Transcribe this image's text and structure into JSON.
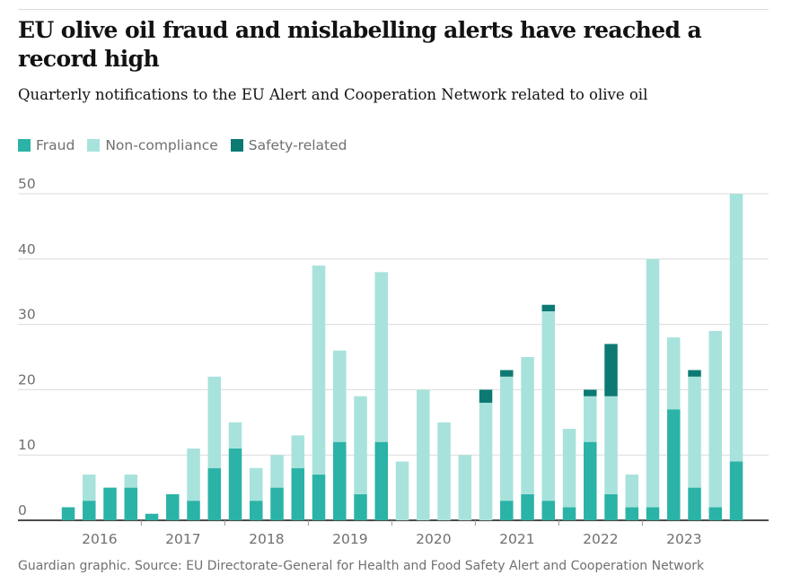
{
  "chart_data": {
    "type": "stacked-bar",
    "title": "EU olive oil fraud and mislabelling alerts have reached a record high",
    "subtitle": "Quarterly notifications to the EU Alert and Cooperation Network related to olive oil",
    "source": "Guardian graphic. Source: EU Directorate-General for Health and Food Safety Alert and Cooperation Network",
    "categories": [
      "2016",
      null,
      null,
      null,
      "2017",
      null,
      null,
      null,
      "2018",
      null,
      null,
      null,
      "2019",
      null,
      null,
      null,
      "2020",
      null,
      null,
      null,
      "2021",
      null,
      null,
      null,
      "2022",
      null,
      null,
      null,
      "2023",
      null,
      null,
      null,
      null
    ],
    "series": [
      {
        "name": "Fraud",
        "color": "#2ab3a6",
        "values": [
          2,
          3,
          5,
          5,
          1,
          4,
          3,
          8,
          11,
          3,
          5,
          8,
          7,
          12,
          4,
          12,
          0,
          0,
          0,
          0,
          0,
          3,
          4,
          3,
          2,
          12,
          4,
          2,
          2,
          17,
          5,
          2,
          9
        ]
      },
      {
        "name": "Non-compliance",
        "color": "#a8e2dc",
        "values": [
          0,
          4,
          0,
          2,
          0,
          0,
          8,
          14,
          4,
          5,
          5,
          5,
          32,
          14,
          15,
          26,
          9,
          20,
          15,
          10,
          18,
          19,
          21,
          29,
          12,
          7,
          15,
          5,
          38,
          11,
          17,
          27,
          41
        ]
      },
      {
        "name": "Safety-related",
        "color": "#0c7a73",
        "values": [
          0,
          0,
          0,
          0,
          0,
          0,
          0,
          0,
          0,
          0,
          0,
          0,
          0,
          0,
          0,
          0,
          0,
          0,
          0,
          0,
          2,
          1,
          0,
          1,
          0,
          1,
          8,
          0,
          0,
          0,
          1,
          0,
          0
        ]
      }
    ],
    "ylim": [
      0,
      50
    ],
    "yticks": [
      0,
      10,
      20,
      30,
      40,
      50
    ],
    "grid": true
  }
}
